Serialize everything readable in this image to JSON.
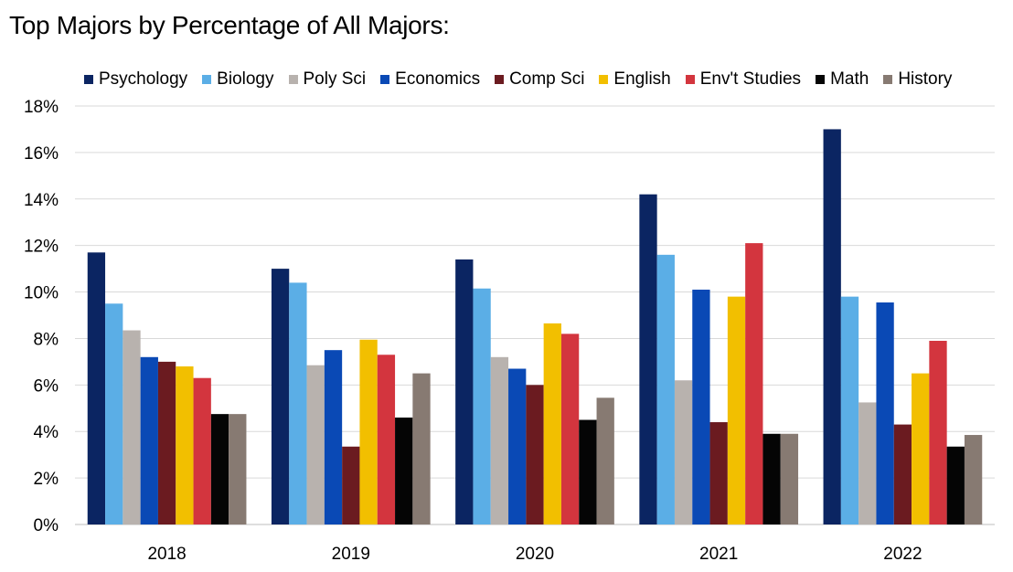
{
  "title": "Top Majors by Percentage of All Majors:",
  "chart_data": {
    "type": "bar",
    "title": "Top Majors by Percentage of All Majors:",
    "xlabel": "",
    "ylabel": "",
    "ylim": [
      0,
      18
    ],
    "yticks": [
      "0%",
      "2%",
      "4%",
      "6%",
      "8%",
      "10%",
      "12%",
      "14%",
      "16%",
      "18%"
    ],
    "grid": true,
    "legend_position": "top",
    "categories": [
      "2018",
      "2019",
      "2020",
      "2021",
      "2022"
    ],
    "series": [
      {
        "name": "Psychology",
        "color": "#0b2562",
        "values": [
          11.7,
          11.0,
          11.4,
          14.2,
          17.0
        ]
      },
      {
        "name": "Biology",
        "color": "#5baee6",
        "values": [
          9.5,
          10.4,
          10.15,
          11.6,
          9.8
        ]
      },
      {
        "name": "Poly Sci",
        "color": "#b8b2ae",
        "values": [
          8.35,
          6.85,
          7.2,
          6.2,
          5.25
        ]
      },
      {
        "name": "Economics",
        "color": "#0a49b5",
        "values": [
          7.2,
          7.5,
          6.7,
          10.1,
          9.55
        ]
      },
      {
        "name": "Comp Sci",
        "color": "#6b1b20",
        "values": [
          7.0,
          3.35,
          6.0,
          4.4,
          4.3
        ]
      },
      {
        "name": "English",
        "color": "#f2bf00",
        "values": [
          6.8,
          7.95,
          8.65,
          9.8,
          6.5
        ]
      },
      {
        "name": "Env't Studies",
        "color": "#d3353e",
        "values": [
          6.3,
          7.3,
          8.2,
          12.1,
          7.9
        ]
      },
      {
        "name": "Math",
        "color": "#050505",
        "values": [
          4.75,
          4.6,
          4.5,
          3.9,
          3.35
        ]
      },
      {
        "name": "History",
        "color": "#877a72",
        "values": [
          4.75,
          6.5,
          5.45,
          3.9,
          3.85
        ]
      }
    ]
  }
}
